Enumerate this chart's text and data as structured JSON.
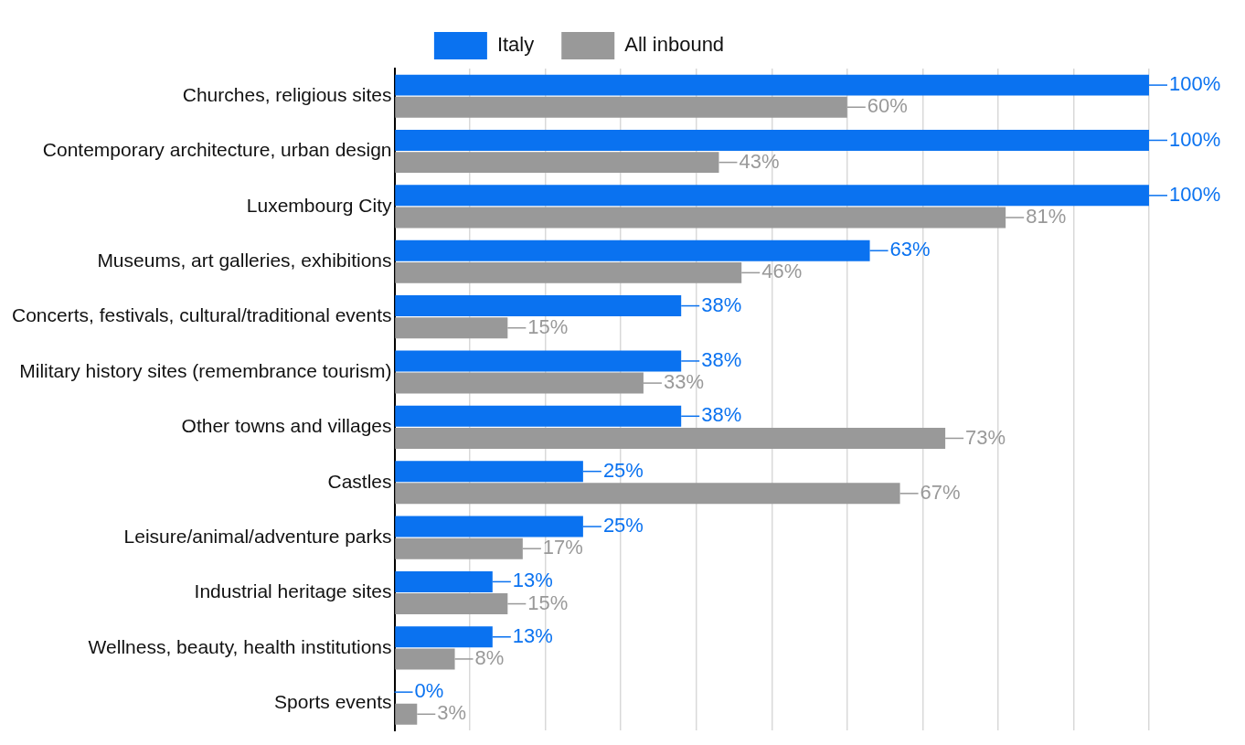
{
  "chart_data": {
    "type": "bar",
    "orientation": "horizontal",
    "categories": [
      "Churches, religious sites",
      "Contemporary architecture, urban design",
      "Luxembourg City",
      "Museums, art galleries, exhibitions",
      "Concerts, festivals, cultural/traditional events",
      "Military history sites (remembrance tourism)",
      "Other towns and villages",
      "Castles",
      "Leisure/animal/adventure parks",
      "Industrial heritage sites",
      "Wellness, beauty, health institutions",
      "Sports events"
    ],
    "series": [
      {
        "name": "Italy",
        "color": "#0a72f0",
        "values": [
          100,
          100,
          100,
          63,
          38,
          38,
          38,
          25,
          25,
          13,
          13,
          0
        ],
        "value_labels": [
          "100%",
          "100%",
          "100%",
          "63%",
          "38%",
          "38%",
          "38%",
          "25%",
          "25%",
          "13%",
          "13%",
          "0%"
        ]
      },
      {
        "name": "All inbound",
        "color": "#999999",
        "values": [
          60,
          43,
          81,
          46,
          15,
          33,
          73,
          67,
          17,
          15,
          8,
          3
        ],
        "value_labels": [
          "60%",
          "43%",
          "81%",
          "46%",
          "15%",
          "33%",
          "73%",
          "67%",
          "17%",
          "15%",
          "8%",
          "3%"
        ]
      }
    ],
    "grid": "x",
    "legend": "top",
    "tick_labels": "y"
  }
}
